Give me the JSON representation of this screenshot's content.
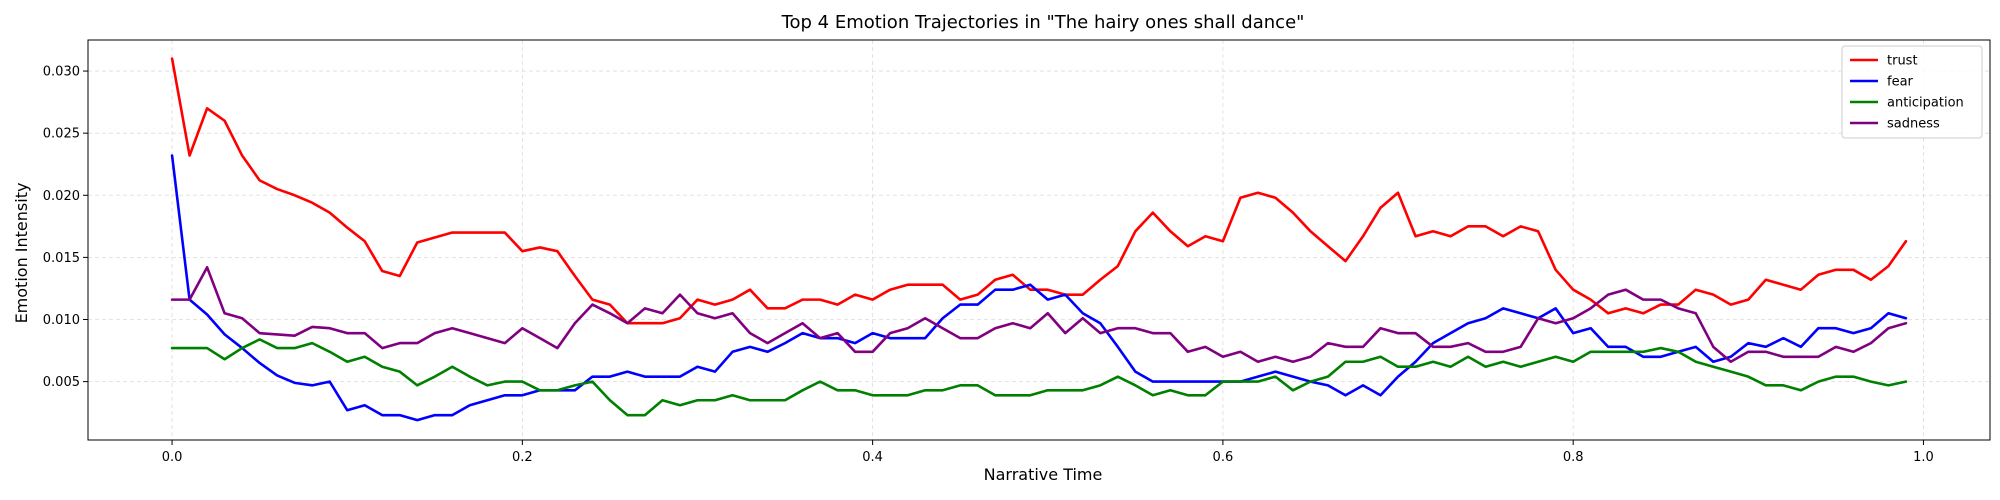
{
  "chart_data": {
    "type": "line",
    "title": "Top 4 Emotion Trajectories in \"The hairy ones shall dance\"",
    "xlabel": "Narrative Time",
    "ylabel": "Emotion Intensity",
    "xlim": [
      -0.048,
      1.038
    ],
    "ylim": [
      0.0003,
      0.0325
    ],
    "xticks": [
      0.0,
      0.2,
      0.4,
      0.6,
      0.8,
      1.0
    ],
    "xtick_labels": [
      "0.0",
      "0.2",
      "0.4",
      "0.6",
      "0.8",
      "1.0"
    ],
    "yticks": [
      0.005,
      0.01,
      0.015,
      0.02,
      0.025,
      0.03
    ],
    "ytick_labels": [
      "0.005",
      "0.010",
      "0.015",
      "0.020",
      "0.025",
      "0.030"
    ],
    "grid": true,
    "legend_position": "top-right",
    "x": [
      0.0,
      0.01,
      0.02,
      0.03,
      0.04,
      0.05,
      0.06,
      0.07,
      0.08,
      0.09,
      0.1,
      0.11,
      0.12,
      0.13,
      0.14,
      0.15,
      0.16,
      0.17,
      0.18,
      0.19,
      0.2,
      0.21,
      0.22,
      0.23,
      0.24,
      0.25,
      0.26,
      0.27,
      0.28,
      0.29,
      0.3,
      0.31,
      0.32,
      0.33,
      0.34,
      0.35,
      0.36,
      0.37,
      0.38,
      0.39,
      0.4,
      0.41,
      0.42,
      0.43,
      0.44,
      0.45,
      0.46,
      0.47,
      0.48,
      0.49,
      0.5,
      0.51,
      0.52,
      0.53,
      0.54,
      0.55,
      0.56,
      0.57,
      0.58,
      0.59,
      0.6,
      0.61,
      0.62,
      0.63,
      0.64,
      0.65,
      0.66,
      0.67,
      0.68,
      0.69,
      0.7,
      0.71,
      0.72,
      0.73,
      0.74,
      0.75,
      0.76,
      0.77,
      0.78,
      0.79,
      0.8,
      0.81,
      0.82,
      0.83,
      0.84,
      0.85,
      0.86,
      0.87,
      0.88,
      0.89,
      0.9,
      0.91,
      0.92,
      0.93,
      0.94,
      0.95,
      0.96,
      0.97,
      0.98,
      0.99
    ],
    "series": [
      {
        "name": "trust",
        "color": "#ff0000",
        "values": [
          0.031,
          0.0232,
          0.027,
          0.026,
          0.0232,
          0.0212,
          0.0205,
          0.02,
          0.0194,
          0.0186,
          0.0174,
          0.0163,
          0.0139,
          0.0135,
          0.0162,
          0.0166,
          0.017,
          0.017,
          0.017,
          0.017,
          0.0155,
          0.0158,
          0.0155,
          0.0135,
          0.0116,
          0.0112,
          0.0097,
          0.0097,
          0.0097,
          0.0101,
          0.0116,
          0.0112,
          0.0116,
          0.0124,
          0.0109,
          0.0109,
          0.0116,
          0.0116,
          0.0112,
          0.012,
          0.0116,
          0.0124,
          0.0128,
          0.0128,
          0.0128,
          0.0116,
          0.012,
          0.0132,
          0.0136,
          0.0124,
          0.0124,
          0.012,
          0.012,
          0.0132,
          0.0143,
          0.0171,
          0.0186,
          0.0171,
          0.0159,
          0.0167,
          0.0163,
          0.0198,
          0.0202,
          0.0198,
          0.0186,
          0.0171,
          0.0159,
          0.0147,
          0.0167,
          0.019,
          0.0202,
          0.0167,
          0.0171,
          0.0167,
          0.0175,
          0.0175,
          0.0167,
          0.0175,
          0.0171,
          0.014,
          0.0124,
          0.0116,
          0.0105,
          0.0109,
          0.0105,
          0.0112,
          0.0112,
          0.0124,
          0.012,
          0.0112,
          0.0116,
          0.0132,
          0.0128,
          0.0124,
          0.0136,
          0.014,
          0.014,
          0.0132,
          0.0143,
          0.0163
        ]
      },
      {
        "name": "fear",
        "color": "#0000ff",
        "values": [
          0.0232,
          0.0116,
          0.0104,
          0.0088,
          0.0077,
          0.0065,
          0.0055,
          0.0049,
          0.0047,
          0.005,
          0.0027,
          0.0031,
          0.0023,
          0.0023,
          0.0019,
          0.0023,
          0.0023,
          0.0031,
          0.0035,
          0.0039,
          0.0039,
          0.0043,
          0.0043,
          0.0043,
          0.0054,
          0.0054,
          0.0058,
          0.0054,
          0.0054,
          0.0054,
          0.0062,
          0.0058,
          0.0074,
          0.0078,
          0.0074,
          0.0081,
          0.0089,
          0.0085,
          0.0085,
          0.0081,
          0.0089,
          0.0085,
          0.0085,
          0.0085,
          0.0101,
          0.0112,
          0.0112,
          0.0124,
          0.0124,
          0.0128,
          0.0116,
          0.012,
          0.0105,
          0.0097,
          0.0078,
          0.0058,
          0.005,
          0.005,
          0.005,
          0.005,
          0.005,
          0.005,
          0.0054,
          0.0058,
          0.0054,
          0.005,
          0.0047,
          0.0039,
          0.0047,
          0.0039,
          0.0054,
          0.0066,
          0.0081,
          0.0089,
          0.0097,
          0.0101,
          0.0109,
          0.0105,
          0.0101,
          0.0109,
          0.0089,
          0.0093,
          0.0078,
          0.0078,
          0.007,
          0.007,
          0.0074,
          0.0078,
          0.0066,
          0.007,
          0.0081,
          0.0078,
          0.0085,
          0.0078,
          0.0093,
          0.0093,
          0.0089,
          0.0093,
          0.0105,
          0.0101
        ]
      },
      {
        "name": "anticipation",
        "color": "#008000",
        "values": [
          0.0077,
          0.0077,
          0.0077,
          0.0068,
          0.0077,
          0.0084,
          0.0077,
          0.0077,
          0.0081,
          0.0074,
          0.0066,
          0.007,
          0.0062,
          0.0058,
          0.0047,
          0.0054,
          0.0062,
          0.0054,
          0.0047,
          0.005,
          0.005,
          0.0043,
          0.0043,
          0.0047,
          0.005,
          0.0035,
          0.0023,
          0.0023,
          0.0035,
          0.0031,
          0.0035,
          0.0035,
          0.0039,
          0.0035,
          0.0035,
          0.0035,
          0.0043,
          0.005,
          0.0043,
          0.0043,
          0.0039,
          0.0039,
          0.0039,
          0.0043,
          0.0043,
          0.0047,
          0.0047,
          0.0039,
          0.0039,
          0.0039,
          0.0043,
          0.0043,
          0.0043,
          0.0047,
          0.0054,
          0.0047,
          0.0039,
          0.0043,
          0.0039,
          0.0039,
          0.005,
          0.005,
          0.005,
          0.0054,
          0.0043,
          0.005,
          0.0054,
          0.0066,
          0.0066,
          0.007,
          0.0062,
          0.0062,
          0.0066,
          0.0062,
          0.007,
          0.0062,
          0.0066,
          0.0062,
          0.0066,
          0.007,
          0.0066,
          0.0074,
          0.0074,
          0.0074,
          0.0074,
          0.0077,
          0.0074,
          0.0066,
          0.0062,
          0.0058,
          0.0054,
          0.0047,
          0.0047,
          0.0043,
          0.005,
          0.0054,
          0.0054,
          0.005,
          0.0047,
          0.005
        ]
      },
      {
        "name": "sadness",
        "color": "#800080",
        "values": [
          0.0116,
          0.0116,
          0.0142,
          0.0105,
          0.0101,
          0.0089,
          0.0088,
          0.0087,
          0.0094,
          0.0093,
          0.0089,
          0.0089,
          0.0077,
          0.0081,
          0.0081,
          0.0089,
          0.0093,
          0.0089,
          0.0085,
          0.0081,
          0.0093,
          0.0085,
          0.0077,
          0.0097,
          0.0112,
          0.0105,
          0.0097,
          0.0109,
          0.0105,
          0.012,
          0.0105,
          0.0101,
          0.0105,
          0.0089,
          0.0081,
          0.0089,
          0.0097,
          0.0085,
          0.0089,
          0.0074,
          0.0074,
          0.0089,
          0.0093,
          0.0101,
          0.0093,
          0.0085,
          0.0085,
          0.0093,
          0.0097,
          0.0093,
          0.0105,
          0.0089,
          0.0101,
          0.0089,
          0.0093,
          0.0093,
          0.0089,
          0.0089,
          0.0074,
          0.0078,
          0.007,
          0.0074,
          0.0066,
          0.007,
          0.0066,
          0.007,
          0.0081,
          0.0078,
          0.0078,
          0.0093,
          0.0089,
          0.0089,
          0.0078,
          0.0078,
          0.0081,
          0.0074,
          0.0074,
          0.0078,
          0.0101,
          0.0097,
          0.0101,
          0.0109,
          0.012,
          0.0124,
          0.0116,
          0.0116,
          0.0109,
          0.0105,
          0.0078,
          0.0066,
          0.0074,
          0.0074,
          0.007,
          0.007,
          0.007,
          0.0078,
          0.0074,
          0.0081,
          0.0093,
          0.0097
        ]
      }
    ]
  }
}
